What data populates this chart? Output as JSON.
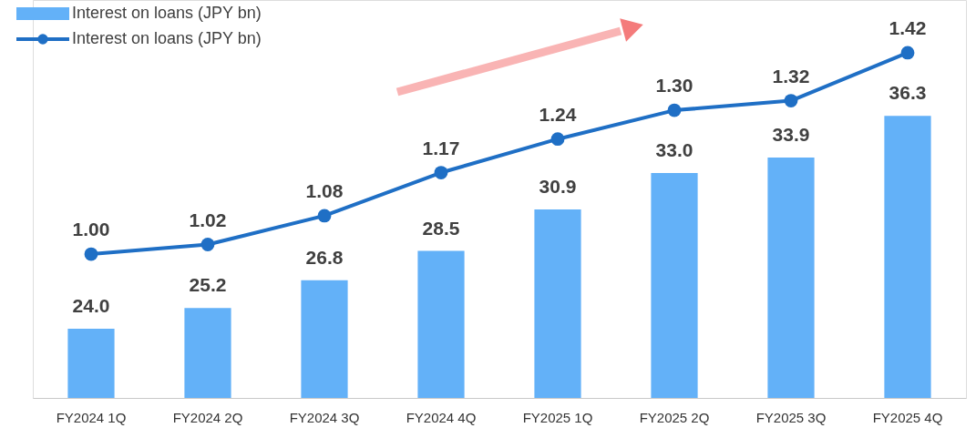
{
  "chart_data": {
    "type": "bar",
    "categories": [
      "FY2024  1Q",
      "FY2024  2Q",
      "FY2024  3Q",
      "FY2024  4Q",
      "FY2025  1Q",
      "FY2025  2Q",
      "FY2025  3Q",
      "FY2025  4Q"
    ],
    "series": [
      {
        "name": "Interest on loans (JPY bn)",
        "color": "#63b1f8",
        "values": [
          24.0,
          25.2,
          26.8,
          28.5,
          30.9,
          33.0,
          33.9,
          36.3
        ],
        "value_labels": [
          "24.0",
          "25.2",
          "26.8",
          "28.5",
          "30.9",
          "33.0",
          "33.9",
          "36.3"
        ]
      },
      {
        "name": "Interest on loans (JPY bn)",
        "type": "line",
        "axis": "y2",
        "color": "#1f6fc5",
        "values": [
          1.0,
          1.02,
          1.08,
          1.17,
          1.24,
          1.3,
          1.32,
          1.42
        ],
        "value_labels": [
          "1.00",
          "1.02",
          "1.08",
          "1.17",
          "1.24",
          "1.30",
          "1.32",
          "1.42"
        ]
      }
    ],
    "ylim": [
      20,
      43
    ],
    "y2lim": [
      0.7,
      1.53
    ],
    "tick_labels": "x",
    "grid": false,
    "legend": "top left",
    "marker": "circle",
    "line_style": "solid"
  }
}
